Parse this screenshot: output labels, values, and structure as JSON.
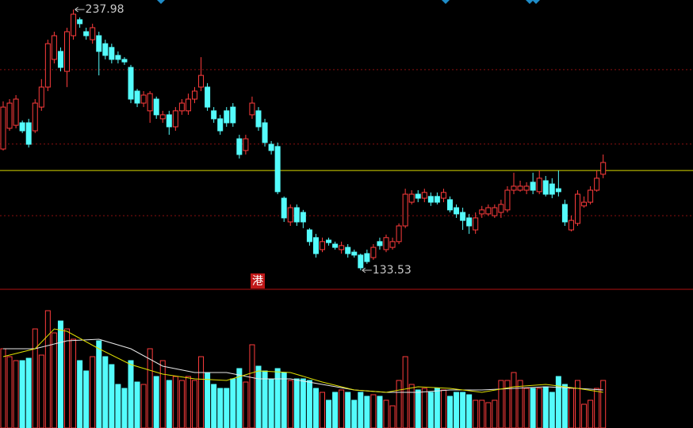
{
  "chart_data": [
    {
      "type": "candlestick",
      "ylim": [
        125.9,
        241.8
      ],
      "gridlines": [
        213.9,
        184.1,
        155.4
      ],
      "reference_line": {
        "value": 173.5,
        "color": "#d8d800"
      },
      "up_color": "#ff3c3c",
      "down_color": "#54fcfc",
      "marker": "港",
      "open": [
        182.1,
        190.4,
        191.6,
        192.6,
        192.6,
        189.4,
        198.9,
        206.9,
        218.0,
        221.2,
        213.2,
        227.5,
        233.9,
        229.1,
        225.9,
        227.5,
        224.3,
        222.8,
        219.6,
        218.0,
        214.8,
        205.3,
        200.5,
        197.4,
        202.1,
        194.2,
        195.8,
        191.0,
        197.4,
        197.4,
        202.1,
        206.9,
        206.9,
        197.4,
        194.2,
        197.4,
        198.9,
        186.2,
        181.5,
        195.8,
        197.4,
        192.6,
        184.0,
        183.1,
        162.4,
        152.9,
        158.6,
        156.7,
        149.7,
        146.6,
        141.8,
        145.6,
        144.0,
        141.8,
        142.7,
        140.8,
        139.6,
        140.2,
        138.6,
        145.0,
        141.8,
        142.7,
        145.0,
        151.3,
        160.8,
        164.0,
        162.4,
        163.1,
        163.1,
        162.4,
        161.8,
        158.6,
        156.7,
        154.5,
        149.7,
        156.1,
        156.1,
        155.4,
        156.7,
        157.7,
        165.6,
        165.6,
        165.6,
        168.8,
        165.0,
        169.4,
        168.1,
        166.2,
        159.9,
        149.7,
        152.3,
        159.3,
        160.8,
        165.6,
        172.0
      ],
      "high": [
        201.2,
        202.1,
        203.7,
        193.5,
        194.2,
        202.1,
        210.1,
        225.9,
        229.1,
        222.8,
        230.7,
        237.98,
        234.8,
        230.7,
        232.3,
        229.1,
        225.9,
        224.3,
        221.2,
        218.9,
        215.8,
        206.2,
        205.3,
        205.3,
        203.1,
        197.4,
        197.4,
        198.9,
        202.1,
        204.3,
        206.9,
        218.9,
        208.5,
        198.9,
        195.8,
        198.9,
        200.5,
        187.8,
        187.8,
        203.1,
        198.9,
        194.2,
        185.3,
        184.7,
        163.1,
        159.9,
        159.9,
        157.7,
        150.4,
        148.1,
        146.6,
        146.6,
        145.0,
        145.0,
        144.0,
        141.8,
        140.2,
        141.8,
        144.0,
        146.6,
        147.8,
        146.6,
        152.3,
        166.2,
        165.6,
        165.6,
        166.2,
        164.7,
        164.7,
        166.2,
        163.1,
        159.9,
        158.6,
        156.1,
        156.7,
        159.3,
        159.9,
        159.9,
        161.8,
        167.2,
        172.6,
        169.4,
        168.8,
        172.6,
        173.5,
        171.3,
        170.4,
        173.5,
        161.8,
        155.4,
        165.6,
        163.1,
        167.2,
        173.5,
        179.9
      ],
      "low": [
        181.5,
        189.4,
        190.4,
        188.5,
        182.7,
        188.5,
        197.4,
        205.3,
        216.4,
        213.2,
        206.9,
        225.9,
        230.7,
        225.9,
        224.3,
        211.6,
        218.0,
        216.4,
        216.4,
        215.8,
        200.5,
        198.9,
        198.9,
        192.6,
        194.2,
        192.6,
        187.8,
        189.4,
        195.8,
        195.8,
        200.5,
        205.3,
        197.4,
        192.6,
        187.8,
        191.0,
        191.0,
        178.3,
        179.9,
        194.2,
        189.4,
        183.1,
        179.9,
        164.0,
        152.9,
        151.3,
        151.3,
        150.4,
        143.4,
        138.6,
        140.8,
        143.4,
        141.8,
        140.2,
        138.6,
        138.6,
        133.53,
        136.1,
        137.7,
        141.8,
        140.8,
        141.8,
        144.0,
        150.4,
        159.9,
        160.8,
        160.8,
        159.3,
        159.9,
        160.8,
        156.7,
        154.5,
        149.7,
        148.1,
        148.1,
        154.5,
        155.4,
        154.5,
        154.5,
        156.7,
        164.0,
        165.0,
        164.0,
        164.0,
        164.0,
        163.1,
        162.4,
        163.1,
        151.3,
        149.1,
        151.3,
        158.6,
        159.9,
        165.0,
        170.4
      ],
      "close": [
        198.9,
        200.5,
        202.1,
        189.4,
        184.0,
        200.5,
        206.9,
        224.3,
        227.5,
        214.8,
        229.1,
        236.1,
        232.3,
        227.5,
        230.7,
        221.2,
        219.6,
        218.0,
        218.0,
        217.0,
        202.1,
        200.5,
        203.7,
        204.3,
        195.8,
        195.8,
        191.0,
        197.4,
        200.5,
        202.1,
        205.3,
        211.6,
        198.9,
        194.2,
        189.4,
        192.6,
        192.6,
        179.9,
        186.2,
        200.5,
        191.0,
        184.7,
        181.5,
        165.0,
        154.5,
        158.6,
        152.9,
        152.9,
        145.0,
        140.2,
        145.0,
        144.6,
        142.7,
        143.4,
        140.2,
        139.6,
        134.5,
        137.0,
        142.7,
        143.4,
        146.6,
        145.0,
        151.3,
        164.0,
        164.0,
        162.4,
        164.7,
        160.8,
        160.8,
        164.7,
        157.7,
        156.1,
        153.5,
        151.3,
        154.5,
        157.7,
        158.6,
        158.6,
        159.9,
        165.6,
        167.2,
        167.2,
        167.2,
        165.6,
        170.4,
        164.0,
        164.0,
        165.0,
        152.9,
        153.5,
        164.0,
        160.8,
        165.6,
        170.4,
        176.7
      ]
    },
    {
      "type": "bar",
      "ylim": [
        0,
        175
      ],
      "values": [
        100,
        90,
        85,
        85,
        88,
        125,
        92,
        148,
        120,
        135,
        125,
        112,
        85,
        72,
        90,
        110,
        90,
        80,
        55,
        50,
        85,
        58,
        55,
        100,
        65,
        85,
        60,
        65,
        60,
        65,
        60,
        90,
        70,
        55,
        50,
        50,
        62,
        75,
        58,
        105,
        78,
        72,
        62,
        75,
        70,
        60,
        62,
        62,
        60,
        50,
        45,
        35,
        45,
        48,
        45,
        35,
        45,
        40,
        42,
        40,
        35,
        28,
        60,
        90,
        55,
        48,
        50,
        45,
        50,
        48,
        40,
        45,
        45,
        42,
        35,
        35,
        32,
        35,
        60,
        60,
        70,
        60,
        50,
        50,
        50,
        52,
        45,
        65,
        55,
        50,
        60,
        30,
        35,
        50,
        60
      ],
      "lines": [
        {
          "color": "#e8e8e8",
          "x": [
            0,
            5,
            10,
            15,
            20,
            25,
            30,
            35,
            40,
            45,
            50,
            55,
            60,
            65,
            70,
            75,
            80,
            85,
            90,
            94
          ],
          "values": [
            100,
            100,
            110,
            112,
            100,
            78,
            70,
            70,
            62,
            62,
            55,
            48,
            45,
            45,
            48,
            48,
            50,
            52,
            50,
            48
          ]
        },
        {
          "color": "#e0e000",
          "x": [
            0,
            5,
            8,
            10,
            15,
            20,
            25,
            30,
            35,
            40,
            45,
            50,
            55,
            60,
            65,
            70,
            75,
            80,
            85,
            90,
            94
          ],
          "values": [
            90,
            100,
            125,
            122,
            100,
            80,
            68,
            62,
            60,
            72,
            70,
            58,
            48,
            45,
            52,
            50,
            45,
            52,
            55,
            50,
            45
          ]
        }
      ]
    }
  ]
}
